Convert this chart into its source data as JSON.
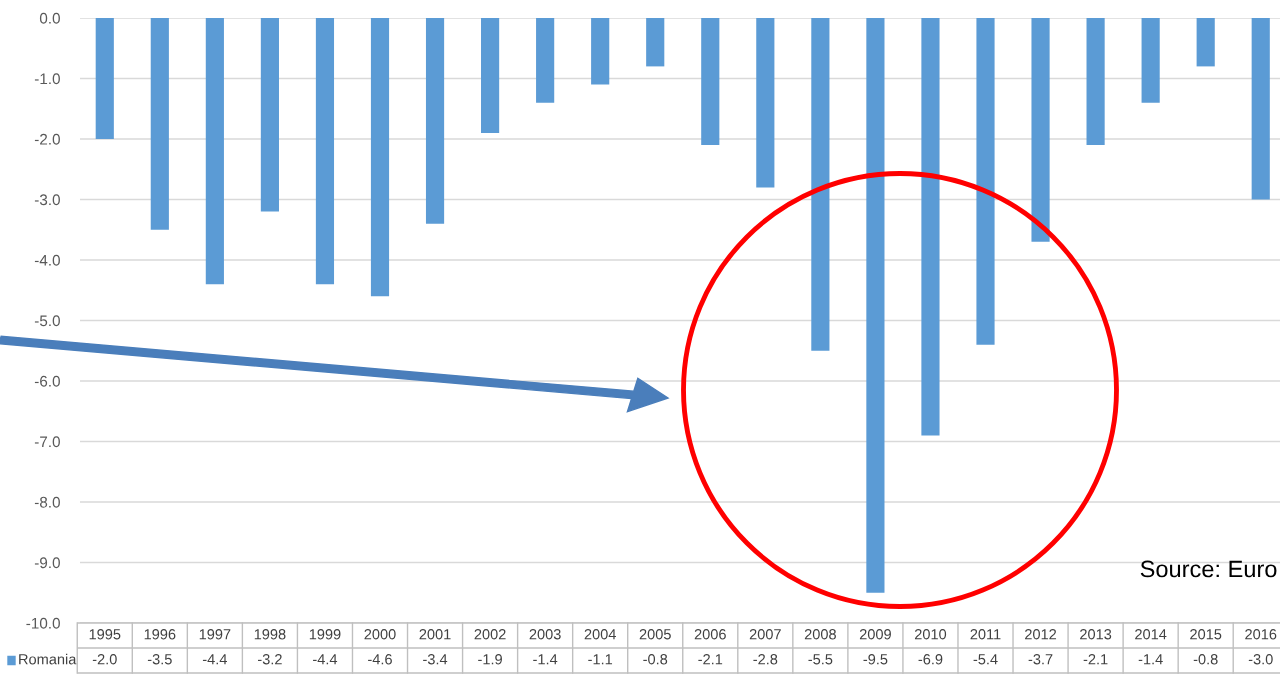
{
  "chart_data": {
    "type": "bar",
    "categories": [
      "1995",
      "1996",
      "1997",
      "1998",
      "1999",
      "2000",
      "2001",
      "2002",
      "2003",
      "2004",
      "2005",
      "2006",
      "2007",
      "2008",
      "2009",
      "2010",
      "2011",
      "2012",
      "2013",
      "2014",
      "2015",
      "2016"
    ],
    "series": [
      {
        "name": "Romania",
        "color": "#5b9bd5",
        "values": [
          -2.0,
          -3.5,
          -4.4,
          -3.2,
          -4.4,
          -4.6,
          -3.4,
          -1.9,
          -1.4,
          -1.1,
          -0.8,
          -2.1,
          -2.8,
          -5.5,
          -9.5,
          -6.9,
          -5.4,
          -3.7,
          -2.1,
          -1.4,
          -0.8,
          -3.0
        ],
        "value_labels": [
          "-2.0",
          "-3.5",
          "-4.4",
          "-3.2",
          "-4.4",
          "-4.6",
          "-3.4",
          "-1.9",
          "-1.4",
          "-1.1",
          "-0.8",
          "-2.1",
          "-2.8",
          "-5.5",
          "-9.5",
          "-6.9",
          "-5.4",
          "-3.7",
          "-2.1",
          "-1.4",
          "-0.8",
          "-3.0"
        ]
      }
    ],
    "ylim": [
      -10,
      0
    ],
    "yticks": [
      {
        "value": 0,
        "label": "0.0"
      },
      {
        "value": -1,
        "label": "-1.0"
      },
      {
        "value": -2,
        "label": "-2.0"
      },
      {
        "value": -3,
        "label": "-3.0"
      },
      {
        "value": -4,
        "label": "-4.0"
      },
      {
        "value": -5,
        "label": "-5.0"
      },
      {
        "value": -6,
        "label": "-6.0"
      },
      {
        "value": -7,
        "label": "-7.0"
      },
      {
        "value": -8,
        "label": "-8.0"
      },
      {
        "value": -9,
        "label": "-9.0"
      },
      {
        "value": -10,
        "label": "-10.0"
      }
    ],
    "grid": "y",
    "annotations": [
      "Source: Euro"
    ]
  }
}
